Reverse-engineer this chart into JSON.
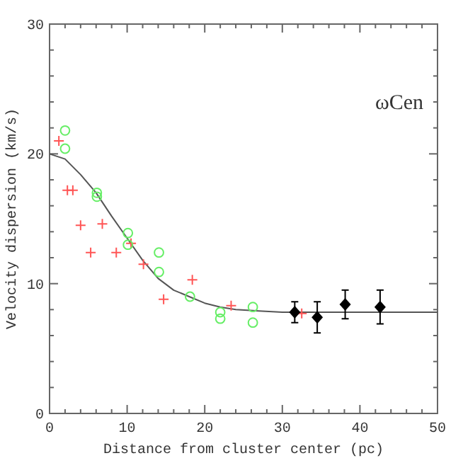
{
  "chart_data": {
    "type": "scatter",
    "xlabel": "Distance from cluster center (pc)",
    "ylabel": "Velocity dispersion (km/s)",
    "annotations": [
      "ωCen"
    ],
    "xlim": [
      0,
      50
    ],
    "ylim": [
      0,
      30
    ],
    "xticks": [
      0,
      {
        "value": 2,
        "label": null
      },
      {
        "value": 4,
        "label": null
      },
      {
        "value": 6,
        "label": null
      },
      {
        "value": 8,
        "label": null
      },
      10,
      {
        "value": 12,
        "label": null
      },
      {
        "value": 14,
        "label": null
      },
      {
        "value": 16,
        "label": null
      },
      {
        "value": 18,
        "label": null
      },
      20,
      {
        "value": 22,
        "label": null
      },
      {
        "value": 24,
        "label": null
      },
      {
        "value": 26,
        "label": null
      },
      {
        "value": 28,
        "label": null
      },
      30,
      {
        "value": 32,
        "label": null
      },
      {
        "value": 34,
        "label": null
      },
      {
        "value": 36,
        "label": null
      },
      {
        "value": 38,
        "label": null
      },
      40,
      {
        "value": 42,
        "label": null
      },
      {
        "value": 44,
        "label": null
      },
      {
        "value": 46,
        "label": null
      },
      {
        "value": 48,
        "label": null
      },
      50
    ],
    "yticks": [
      0,
      {
        "value": 2,
        "label": null
      },
      {
        "value": 4,
        "label": null
      },
      {
        "value": 6,
        "label": null
      },
      {
        "value": 8,
        "label": null
      },
      10,
      {
        "value": 12,
        "label": null
      },
      {
        "value": 14,
        "label": null
      },
      {
        "value": 16,
        "label": null
      },
      {
        "value": 18,
        "label": null
      },
      20,
      {
        "value": 22,
        "label": null
      },
      {
        "value": 24,
        "label": null
      },
      {
        "value": 26,
        "label": null
      },
      {
        "value": 28,
        "label": null
      },
      30
    ],
    "grid": false,
    "series": [
      {
        "type": "line",
        "color": "#555555",
        "line_style": "solid",
        "x": [
          0,
          2,
          4,
          6,
          8,
          10,
          12,
          14,
          16,
          18,
          20,
          22,
          24,
          27,
          30,
          50
        ],
        "values": [
          20.0,
          19.6,
          18.4,
          17.0,
          15.2,
          13.5,
          11.8,
          10.4,
          9.5,
          9.0,
          8.5,
          8.2,
          8.0,
          7.9,
          7.8,
          7.8
        ]
      },
      {
        "color": "#ff5555",
        "marker": "cross",
        "x": [
          1.2,
          2.3,
          3.0,
          4.0,
          6.8,
          5.3,
          8.6,
          10.5,
          12.1,
          14.7,
          18.4,
          23.4,
          32.5
        ],
        "values": [
          21.0,
          17.2,
          17.2,
          14.5,
          14.6,
          12.4,
          12.4,
          13.1,
          11.5,
          8.8,
          10.3,
          8.3,
          7.7
        ]
      },
      {
        "color": "#66ee66",
        "marker": "circle",
        "x": [
          2.0,
          2.0,
          6.1,
          6.1,
          10.1,
          10.1,
          14.1,
          14.1,
          18.1,
          22.0,
          22.0,
          26.2,
          26.2
        ],
        "values": [
          21.8,
          20.4,
          17.0,
          16.7,
          13.9,
          13.0,
          12.4,
          10.9,
          9.0,
          7.8,
          7.3,
          8.2,
          7.0
        ]
      },
      {
        "color": "#000000",
        "marker": "diamond",
        "x": [
          31.6,
          34.5,
          38.1,
          42.6
        ],
        "values": [
          7.8,
          7.4,
          8.4,
          8.2
        ],
        "errors": [
          0.8,
          1.2,
          1.1,
          1.3
        ]
      }
    ]
  }
}
